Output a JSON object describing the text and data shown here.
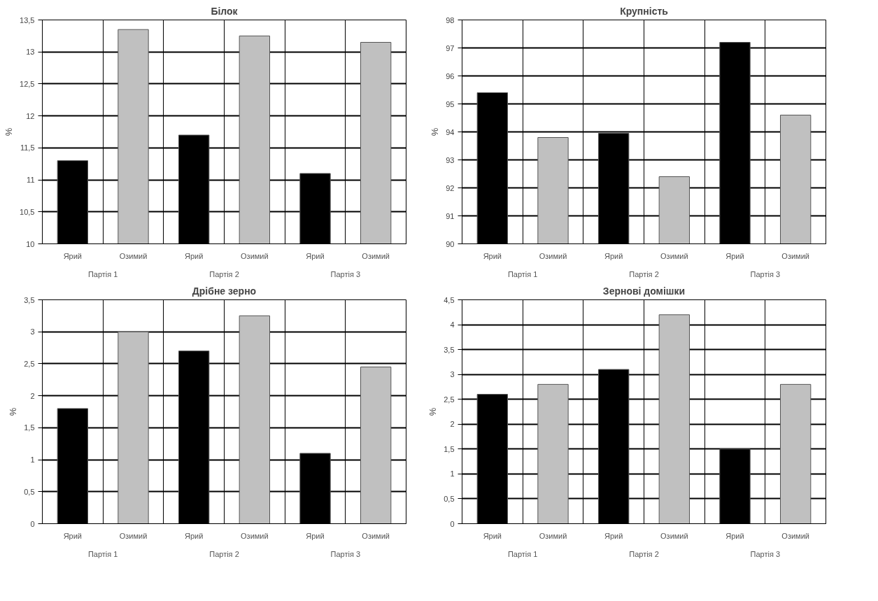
{
  "chart_data": [
    {
      "type": "bar",
      "title": "Білок",
      "ylabel": "%",
      "categories": [
        "Партія 1",
        "Партія 2",
        "Партія 3"
      ],
      "series": [
        {
          "name": "Ярий",
          "color": "#000000",
          "values": [
            11.3,
            11.7,
            11.1
          ]
        },
        {
          "name": "Озимий",
          "color": "#c0c0c0",
          "values": [
            13.35,
            13.25,
            13.15
          ]
        }
      ],
      "ylim": [
        10,
        13.5
      ],
      "yticks": [
        10,
        {
          "value": 10.5,
          "label": "10,5"
        },
        11,
        {
          "value": 11.5,
          "label": "11,5"
        },
        12,
        {
          "value": 12.5,
          "label": "12,5"
        },
        13,
        {
          "value": 13.5,
          "label": "13,5"
        }
      ],
      "grid": true,
      "legend": false
    },
    {
      "type": "bar",
      "title": "Крупність",
      "ylabel": "%",
      "categories": [
        "Партія 1",
        "Партія 2",
        "Партія 3"
      ],
      "series": [
        {
          "name": "Ярий",
          "color": "#000000",
          "values": [
            95.4,
            93.95,
            97.2
          ]
        },
        {
          "name": "Озимий",
          "color": "#c0c0c0",
          "values": [
            93.8,
            92.4,
            94.6
          ]
        }
      ],
      "ylim": [
        90,
        98
      ],
      "yticks": [
        90,
        91,
        92,
        93,
        94,
        95,
        96,
        97,
        98
      ],
      "grid": true,
      "legend": false
    },
    {
      "type": "bar",
      "title": "Дрібне зерно",
      "ylabel": "%",
      "categories": [
        "Партія 1",
        "Партія 2",
        "Партія 3"
      ],
      "series": [
        {
          "name": "Ярий",
          "color": "#000000",
          "values": [
            1.8,
            2.7,
            1.1
          ]
        },
        {
          "name": "Озимий",
          "color": "#c0c0c0",
          "values": [
            3.0,
            3.25,
            2.45
          ]
        }
      ],
      "ylim": [
        0,
        3.5
      ],
      "yticks": [
        0,
        {
          "value": 0.5,
          "label": "0,5"
        },
        1,
        {
          "value": 1.5,
          "label": "1,5"
        },
        2,
        {
          "value": 2.5,
          "label": "2,5"
        },
        3,
        {
          "value": 3.5,
          "label": "3,5"
        }
      ],
      "grid": true,
      "legend": false
    },
    {
      "type": "bar",
      "title": "Зернові домішки",
      "ylabel": "%",
      "categories": [
        "Партія 1",
        "Партія 2",
        "Партія 3"
      ],
      "series": [
        {
          "name": "Ярий",
          "color": "#000000",
          "values": [
            2.6,
            3.1,
            1.5
          ]
        },
        {
          "name": "Озимий",
          "color": "#c0c0c0",
          "values": [
            2.8,
            4.2,
            2.8
          ]
        }
      ],
      "ylim": [
        0,
        4.5
      ],
      "yticks": [
        0,
        {
          "value": 0.5,
          "label": "0,5"
        },
        1,
        {
          "value": 1.5,
          "label": "1,5"
        },
        2,
        {
          "value": 2.5,
          "label": "2,5"
        },
        3,
        {
          "value": 3.5,
          "label": "3,5"
        },
        4,
        {
          "value": 4.5,
          "label": "4,5"
        }
      ],
      "grid": true,
      "legend": false
    }
  ]
}
